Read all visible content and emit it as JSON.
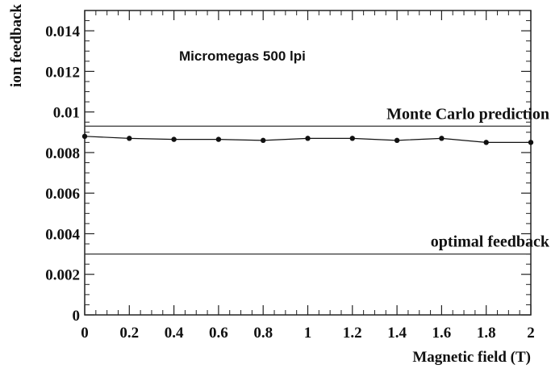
{
  "chart_data": {
    "type": "line",
    "title": "Micromegas 500 lpi",
    "xlabel": "Magnetic field (T)",
    "ylabel": "ion feedback",
    "xlim": [
      0,
      2
    ],
    "ylim": [
      0,
      0.015
    ],
    "x_ticks": [
      "0",
      "0.2",
      "0.4",
      "0.6",
      "0.8",
      "1",
      "1.2",
      "1.4",
      "1.6",
      "1.8",
      "2"
    ],
    "y_ticks": [
      "0",
      "0.002",
      "0.004",
      "0.006",
      "0.008",
      "0.01",
      "0.012",
      "0.014"
    ],
    "grid": false,
    "series": [
      {
        "x": [
          0,
          0.2,
          0.4,
          0.6,
          0.8,
          1.0,
          1.2,
          1.4,
          1.6,
          1.8,
          2.0
        ],
        "y": [
          0.0088,
          0.0087,
          0.00865,
          0.00865,
          0.0086,
          0.0087,
          0.0087,
          0.0086,
          0.0087,
          0.0085,
          0.0085
        ]
      }
    ],
    "reference_lines": [
      {
        "label": "Monte Carlo prediction",
        "y": 0.0093
      },
      {
        "label": "optimal feedback",
        "y": 0.003
      }
    ]
  }
}
